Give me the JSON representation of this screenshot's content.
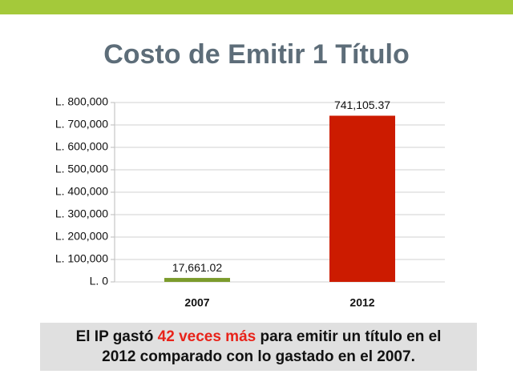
{
  "chart_data": {
    "type": "bar",
    "title": "Costo de Emitir 1 Título",
    "categories": [
      "2007",
      "2012"
    ],
    "values": [
      17661.02,
      741105.37
    ],
    "value_labels": [
      "17,661.02",
      "741,105.37"
    ],
    "colors": [
      "#7b9b2c",
      "#cc1b00"
    ],
    "ylim": [
      0,
      800000
    ],
    "yticks": [
      {
        "value": 0,
        "label": "L. 0"
      },
      {
        "value": 100000,
        "label": "L. 100,000"
      },
      {
        "value": 200000,
        "label": "L. 200,000"
      },
      {
        "value": 300000,
        "label": "L. 300,000"
      },
      {
        "value": 400000,
        "label": "L. 400,000"
      },
      {
        "value": 500000,
        "label": "L. 500,000"
      },
      {
        "value": 600000,
        "label": "L. 600,000"
      },
      {
        "value": 700000,
        "label": "L. 700,000"
      },
      {
        "value": 800000,
        "label": "L. 800,000"
      }
    ],
    "grid": true
  },
  "caption": {
    "line1": [
      "El IP gastó ",
      "42 veces más",
      " para emitir un título en el"
    ],
    "line2": "2012 comparado con lo gastado en el 2007."
  }
}
